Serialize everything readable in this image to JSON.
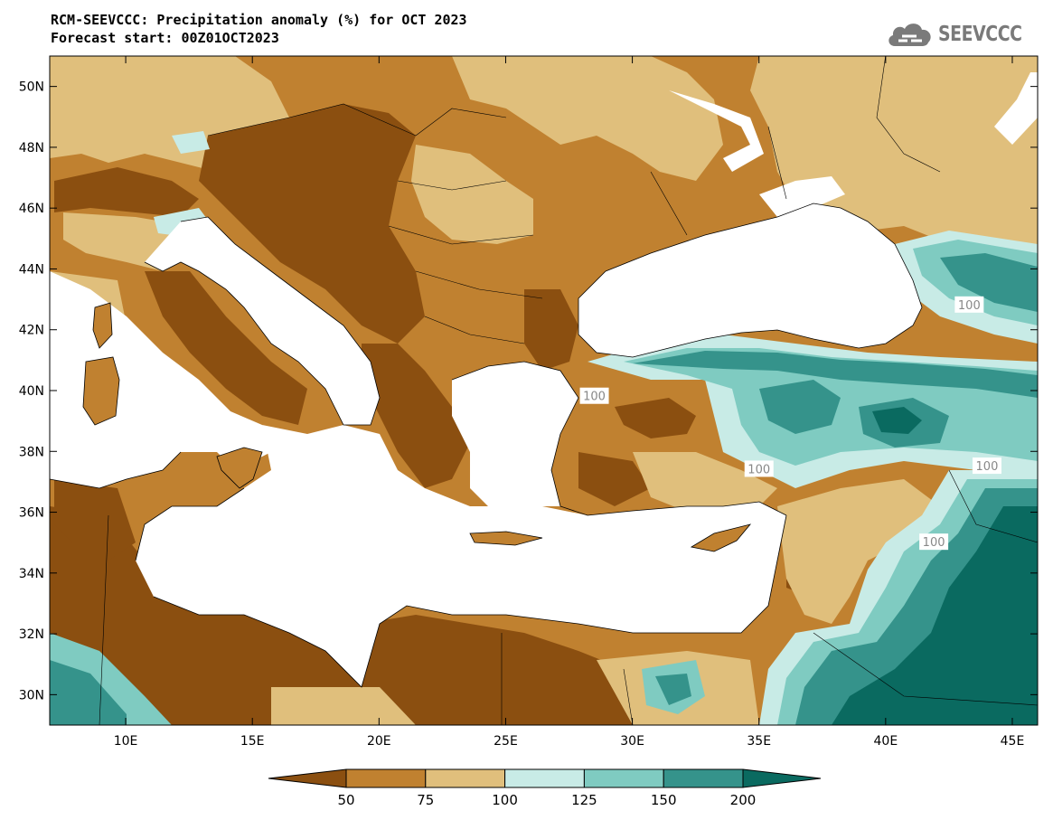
{
  "header": {
    "title_line1": "RCM-SEEVCCC: Precipitation anomaly (%) for OCT 2023",
    "title_line2": "Forecast start: 00Z01OCT2023"
  },
  "logo": {
    "text": "SEEVCCC",
    "icon": "cloud-icon"
  },
  "map": {
    "lon_range": [
      7,
      46
    ],
    "lat_range": [
      29,
      51
    ],
    "x_ticks": [
      {
        "lon": 10,
        "label": "10E"
      },
      {
        "lon": 15,
        "label": "15E"
      },
      {
        "lon": 20,
        "label": "20E"
      },
      {
        "lon": 25,
        "label": "25E"
      },
      {
        "lon": 30,
        "label": "30E"
      },
      {
        "lon": 35,
        "label": "35E"
      },
      {
        "lon": 40,
        "label": "40E"
      },
      {
        "lon": 45,
        "label": "45E"
      }
    ],
    "y_ticks": [
      {
        "lat": 30,
        "label": "30N"
      },
      {
        "lat": 32,
        "label": "32N"
      },
      {
        "lat": 34,
        "label": "34N"
      },
      {
        "lat": 36,
        "label": "36N"
      },
      {
        "lat": 38,
        "label": "38N"
      },
      {
        "lat": 40,
        "label": "40N"
      },
      {
        "lat": 42,
        "label": "42N"
      },
      {
        "lat": 44,
        "label": "44N"
      },
      {
        "lat": 46,
        "label": "46N"
      },
      {
        "lat": 48,
        "label": "48N"
      },
      {
        "lat": 50,
        "label": "50N"
      }
    ],
    "contour_labels": [
      {
        "text": "100",
        "lon": 43.3,
        "lat": 42.8
      },
      {
        "text": "100",
        "lon": 28.5,
        "lat": 39.8
      },
      {
        "text": "100",
        "lon": 35.0,
        "lat": 37.4
      },
      {
        "text": "100",
        "lon": 44.0,
        "lat": 37.5
      },
      {
        "text": "100",
        "lon": 41.9,
        "lat": 35.0
      }
    ]
  },
  "colorbar": {
    "colors": [
      "#8b4f10",
      "#c08130",
      "#e0bf7c",
      "#c8ebe6",
      "#7fcbc1",
      "#35938b",
      "#0a6a60"
    ],
    "labels": [
      "50",
      "75",
      "100",
      "125",
      "150",
      "200"
    ]
  },
  "chart_data": {
    "type": "heatmap",
    "title": "RCM-SEEVCCC: Precipitation anomaly (%) for OCT 2023",
    "subtitle": "Forecast start: 00Z01OCT2023",
    "x_range": [
      7,
      46
    ],
    "y_range": [
      29,
      51
    ],
    "levels": [
      50,
      75,
      100,
      125,
      150,
      200
    ],
    "category_colors": {
      "lt50": "#8b4f10",
      "50-75": "#c08130",
      "75-100": "#e0bf7c",
      "100-125": "#c8ebe6",
      "125-150": "#7fcbc1",
      "150-200": "#35938b",
      "gt200": "#0a6a60"
    }
  }
}
